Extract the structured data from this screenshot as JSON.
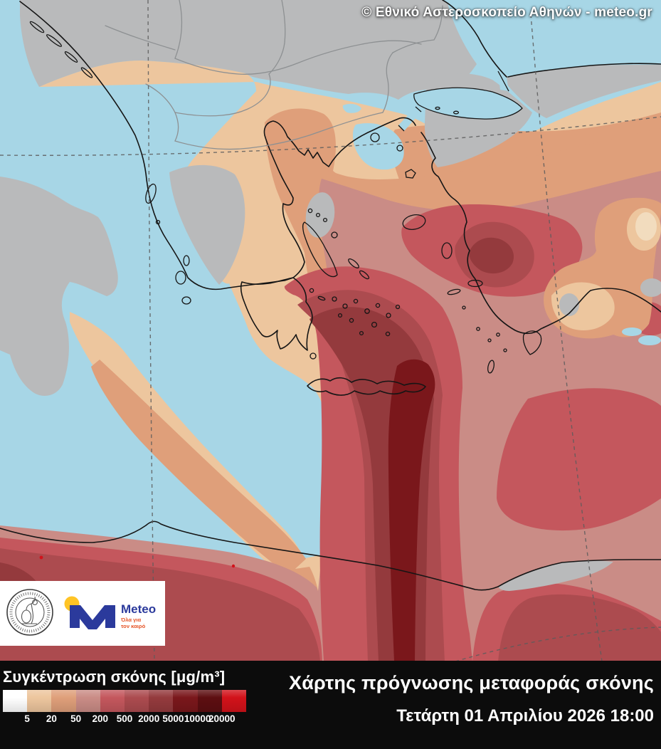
{
  "header": {
    "copyright": "© Εθνικό Αστεροσκοπείο Αθηνών - meteo.gr"
  },
  "footer": {
    "legend_title": "Συγκέντρωση σκόνης [μg/m³]",
    "map_title": "Χάρτης πρόγνωσης μεταφοράς σκόνης",
    "datetime": "Τετάρτη 01 Απριλίου 2026 18:00"
  },
  "legend": {
    "swatches": [
      "#FFFFFF",
      "#EDC69E",
      "#DF9F7A",
      "#CA8C86",
      "#C4575D",
      "#AC4B4F",
      "#943A3D",
      "#7A171B",
      "#5D0E11",
      "#D2121A"
    ],
    "boundary_labels": [
      "5",
      "20",
      "50",
      "200",
      "500",
      "2000",
      "5000",
      "10000",
      "20000"
    ]
  },
  "logos": {
    "noa_seal": "national-observatory-of-athens-seal",
    "meteo_name": "Meteo",
    "meteo_tagline_1": "Όλα για",
    "meteo_tagline_2": "τον καιρό"
  },
  "palette": {
    "sea": "#A7D6E6",
    "land": "#B9BABB",
    "s1": "#FFFFFF",
    "s2": "#EDC69E",
    "s3": "#DF9F7A",
    "s4": "#CA8C86",
    "s5": "#C4575D",
    "s6": "#AC4B4F",
    "s7": "#943A3D",
    "s8": "#7A171B",
    "s9": "#5D0E11",
    "s10": "#D2121A",
    "meteo_blue": "#2B3A9C",
    "meteo_yellow": "#FFC426",
    "meteo_orange": "#E65325"
  }
}
